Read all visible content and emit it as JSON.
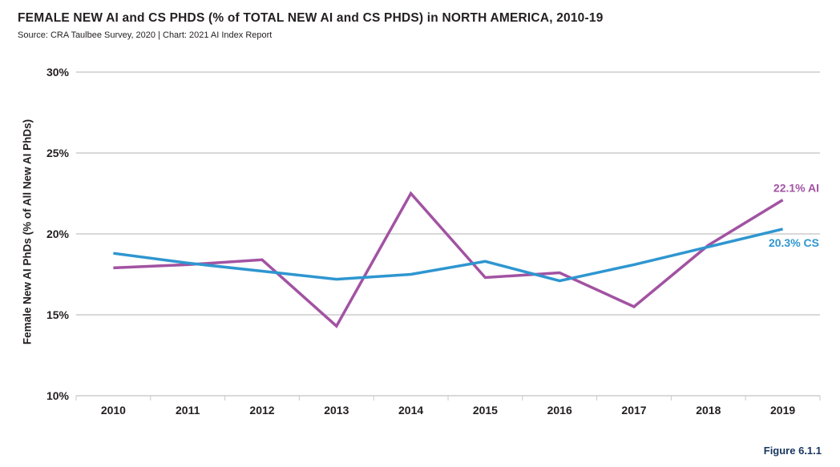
{
  "header": {
    "title": "FEMALE NEW AI and CS PHDS (% of TOTAL NEW AI and CS PHDS) in NORTH AMERICA, 2010-19",
    "source": "Source: CRA Taulbee Survey, 2020 | Chart: 2021 AI Index Report"
  },
  "footer": {
    "figure_label": "Figure 6.1.1"
  },
  "colors": {
    "ai_line": "#a253a2",
    "cs_line": "#2e96d0",
    "grid": "#d9d9d9",
    "tick": "#c9c9c9",
    "axis_text": "#231f20",
    "figure_label": "#17365d"
  },
  "chart_data": {
    "type": "line",
    "title": "FEMALE NEW AI and CS PHDS (% of TOTAL NEW AI and CS PHDS) in NORTH AMERICA, 2010-19",
    "xlabel": "",
    "ylabel": "Female New AI PhDs (% of All New AI PhDs)",
    "categories": [
      "2010",
      "2011",
      "2012",
      "2013",
      "2014",
      "2015",
      "2016",
      "2017",
      "2018",
      "2019"
    ],
    "series": [
      {
        "name": "AI",
        "color": "#a253a2",
        "values": [
          17.9,
          18.1,
          18.4,
          14.3,
          22.5,
          17.3,
          17.6,
          15.5,
          19.3,
          22.1
        ],
        "end_label": "22.1% AI"
      },
      {
        "name": "CS",
        "color": "#2e96d0",
        "values": [
          18.8,
          18.2,
          17.7,
          17.2,
          17.5,
          18.3,
          17.1,
          18.1,
          19.2,
          20.3
        ],
        "end_label": "20.3% CS"
      }
    ],
    "ylim": [
      10,
      30
    ],
    "yticks": [
      30,
      25,
      20,
      15,
      10
    ],
    "ytick_labels": [
      "30%",
      "25%",
      "20%",
      "15%",
      "10%"
    ],
    "grid": true,
    "legend_position": "line-end-labels"
  }
}
